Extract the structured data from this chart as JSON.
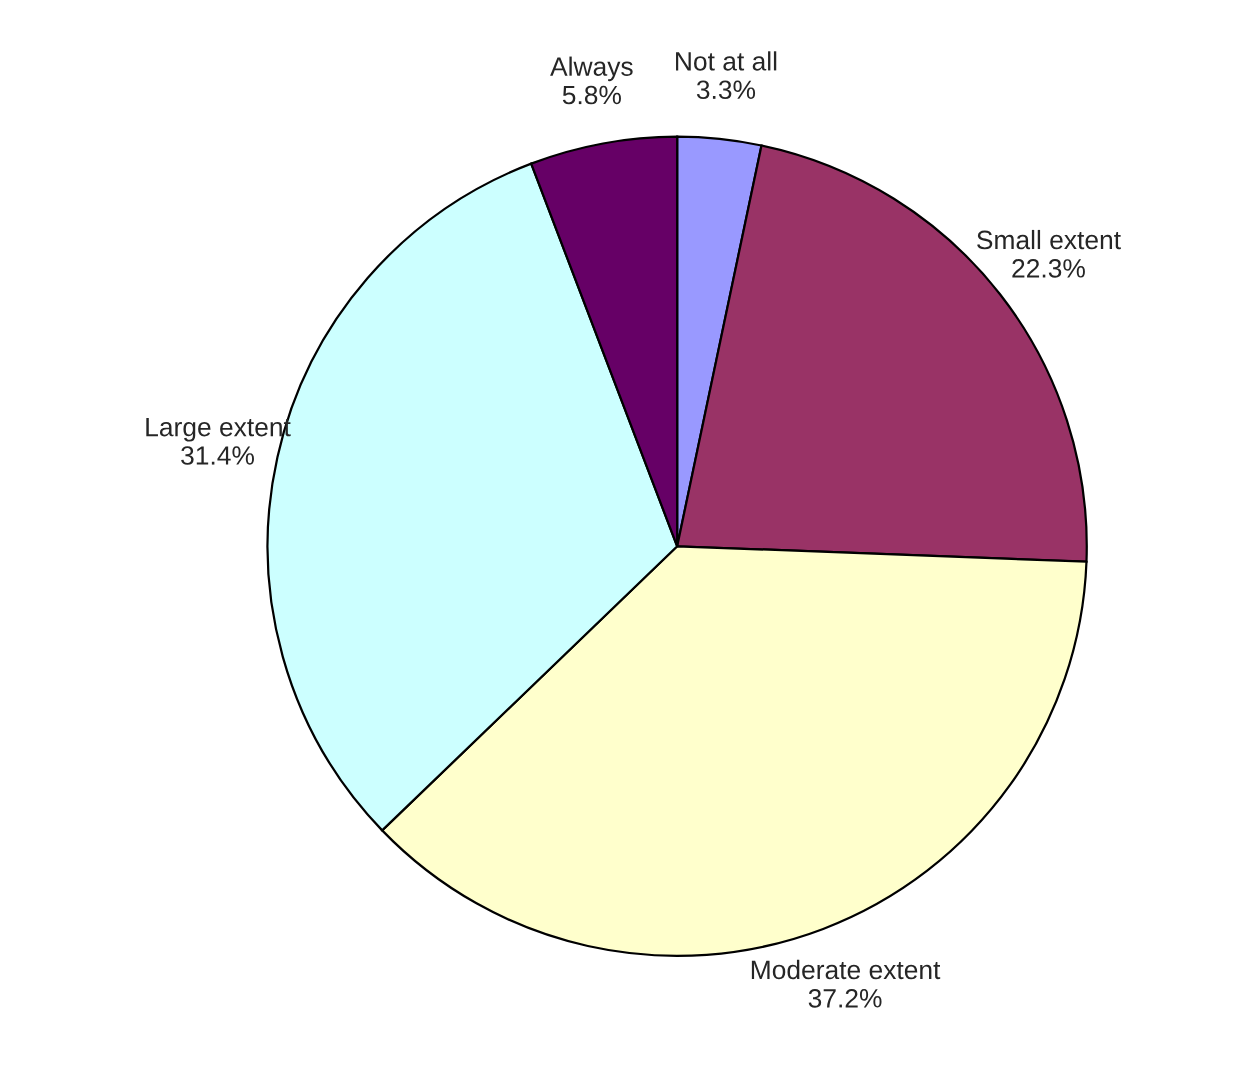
{
  "chart_data": {
    "type": "pie",
    "categories": [
      "Not at all",
      "Small extent",
      "Moderate extent",
      "Large extent",
      "Always"
    ],
    "values": [
      3.3,
      22.3,
      37.2,
      31.4,
      5.8
    ],
    "value_labels": [
      "3.3%",
      "22.3%",
      "37.2%",
      "31.4%",
      "5.8%"
    ],
    "colors": [
      "#9999ff",
      "#993366",
      "#ffffcc",
      "#ccffff",
      "#660066"
    ],
    "legend": false
  }
}
